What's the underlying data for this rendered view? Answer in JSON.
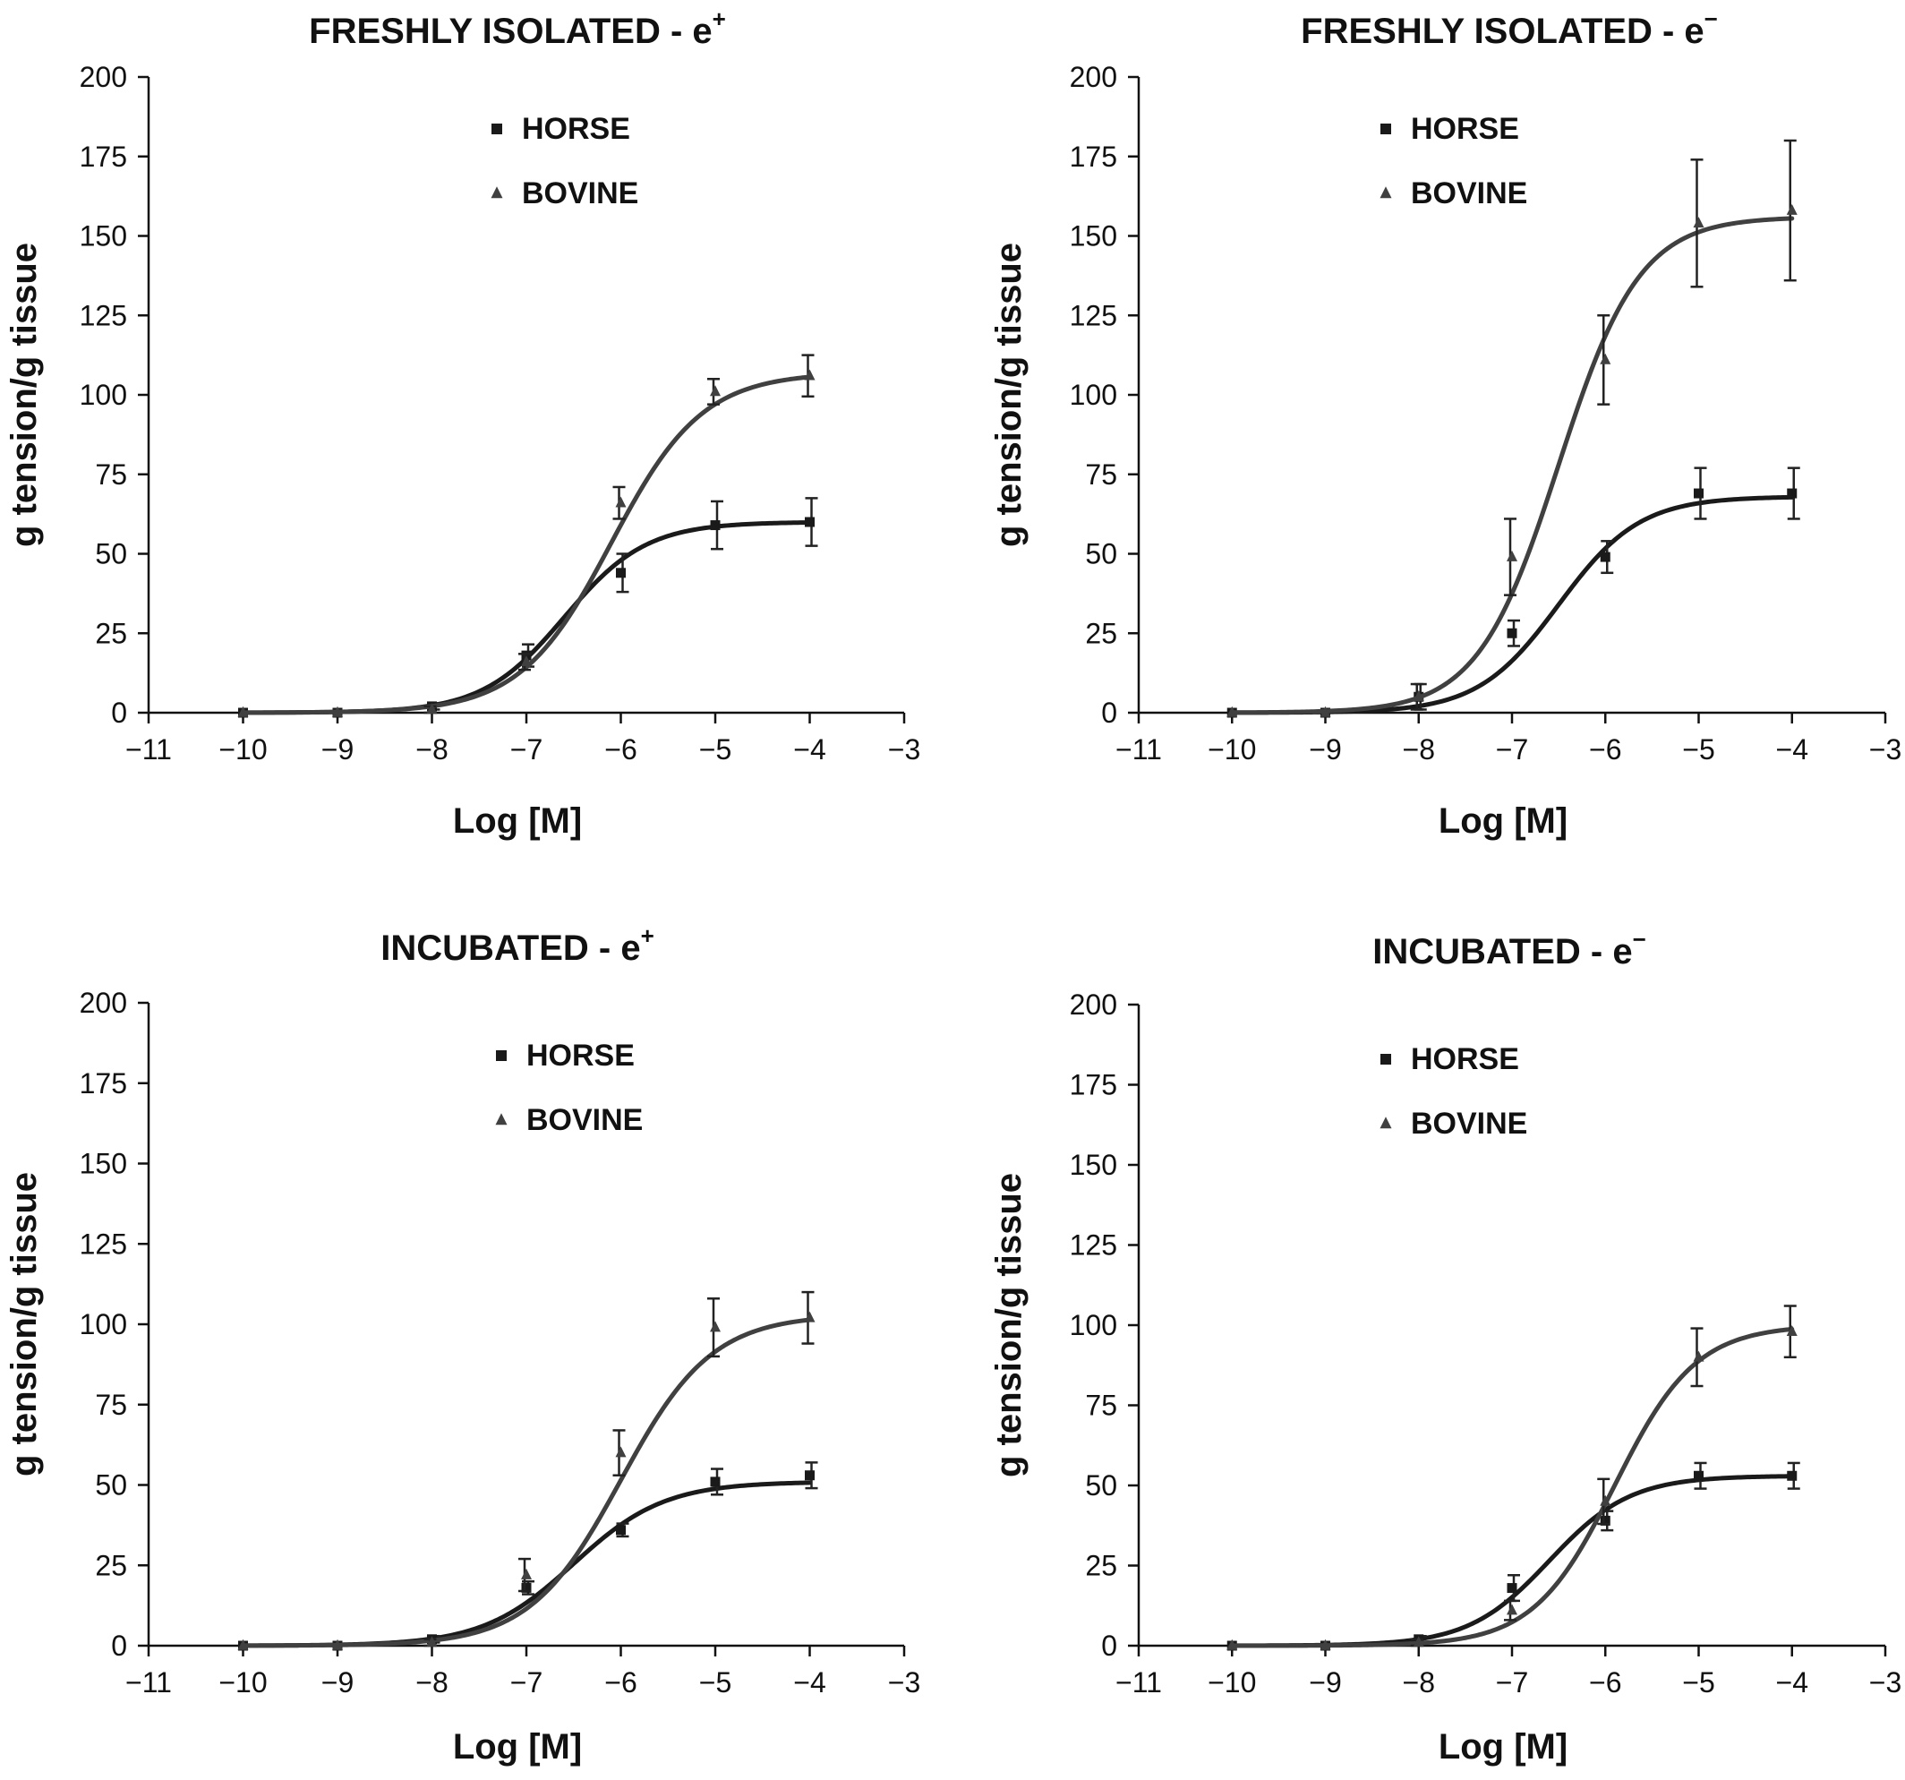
{
  "colors": {
    "horse": "#1a1a1a",
    "bovine": "#404040",
    "axis": "#111111",
    "background": "#ffffff"
  },
  "legend_markers": {
    "horse": "square",
    "bovine": "triangle"
  },
  "chart_data": [
    {
      "type": "scatter",
      "title": "FRESHLY ISOLATED - e",
      "title_superscript": "+",
      "xlabel": "Log [M]",
      "ylabel": "g tension/g tissue",
      "xlim": [
        -11,
        -3
      ],
      "ylim": [
        0,
        200
      ],
      "xticks": [
        -11,
        -10,
        -9,
        -8,
        -7,
        -6,
        -5,
        -4,
        -3
      ],
      "yticks": [
        0,
        25,
        50,
        75,
        100,
        125,
        150,
        175,
        200
      ],
      "xtick_labels": [
        "−11",
        "−10",
        "−9",
        "−8",
        "−7",
        "−6",
        "−5",
        "−4",
        "−3"
      ],
      "ytick_labels": [
        "0",
        "25",
        "50",
        "75",
        "100",
        "125",
        "150",
        "175",
        "200"
      ],
      "grid": false,
      "legend_position": "top-center",
      "x": [
        -10,
        -9,
        -8,
        -7,
        -6,
        -5,
        -4
      ],
      "series": [
        {
          "name": "HORSE",
          "marker": "square",
          "values": [
            0,
            0,
            2,
            18,
            44,
            59,
            60
          ],
          "errors": [
            0,
            0,
            1,
            3.5,
            6,
            7.5,
            7.5
          ],
          "fit_top": 60,
          "fit_ec50": -6.6,
          "fit_slope": 1.0
        },
        {
          "name": "BOVINE",
          "marker": "triangle",
          "values": [
            0,
            0,
            1,
            16,
            66,
            101,
            106
          ],
          "errors": [
            0,
            0,
            1,
            2.5,
            5,
            4,
            6.5
          ],
          "fit_top": 107,
          "fit_ec50": -6.1,
          "fit_slope": 0.9
        }
      ]
    },
    {
      "type": "scatter",
      "title": "FRESHLY ISOLATED - e",
      "title_superscript": "−",
      "xlabel": "Log [M]",
      "ylabel": "g tension/g tissue",
      "xlim": [
        -11,
        -3
      ],
      "ylim": [
        0,
        200
      ],
      "xticks": [
        -11,
        -10,
        -9,
        -8,
        -7,
        -6,
        -5,
        -4,
        -3
      ],
      "yticks": [
        0,
        25,
        50,
        75,
        100,
        125,
        150,
        175,
        200
      ],
      "xtick_labels": [
        "−11",
        "−10",
        "−9",
        "−8",
        "−7",
        "−6",
        "−5",
        "−4",
        "−3"
      ],
      "ytick_labels": [
        "0",
        "25",
        "50",
        "75",
        "100",
        "125",
        "150",
        "175",
        "200"
      ],
      "grid": false,
      "legend_position": "top-center",
      "x": [
        -10,
        -9,
        -8,
        -7,
        -6,
        -5,
        -4
      ],
      "series": [
        {
          "name": "HORSE",
          "marker": "square",
          "values": [
            0,
            0,
            5,
            25,
            49,
            69,
            69
          ],
          "errors": [
            0,
            0,
            4,
            4,
            5,
            8,
            8
          ],
          "fit_top": 68,
          "fit_ec50": -6.5,
          "fit_slope": 1.0
        },
        {
          "name": "BOVINE",
          "marker": "triangle",
          "values": [
            0,
            0,
            5,
            49,
            111,
            154,
            158
          ],
          "errors": [
            0,
            0,
            4,
            12,
            14,
            20,
            22
          ],
          "fit_top": 156,
          "fit_ec50": -6.5,
          "fit_slope": 1.0
        }
      ]
    },
    {
      "type": "scatter",
      "title": "INCUBATED - e",
      "title_superscript": "+",
      "xlabel": "Log [M]",
      "ylabel": "g tension/g tissue",
      "xlim": [
        -11,
        -3
      ],
      "ylim": [
        0,
        200
      ],
      "xticks": [
        -11,
        -10,
        -9,
        -8,
        -7,
        -6,
        -5,
        -4,
        -3
      ],
      "yticks": [
        0,
        25,
        50,
        75,
        100,
        125,
        150,
        175,
        200
      ],
      "xtick_labels": [
        "−11",
        "−10",
        "−9",
        "−8",
        "−7",
        "−6",
        "−5",
        "−4",
        "−3"
      ],
      "ytick_labels": [
        "0",
        "25",
        "50",
        "75",
        "100",
        "125",
        "150",
        "175",
        "200"
      ],
      "grid": false,
      "legend_position": "top-center",
      "x": [
        -10,
        -9,
        -8,
        -7,
        -6,
        -5,
        -4
      ],
      "series": [
        {
          "name": "HORSE",
          "marker": "square",
          "values": [
            0,
            0,
            2,
            18,
            36,
            51,
            53
          ],
          "errors": [
            0,
            0,
            1,
            2,
            2,
            4,
            4
          ],
          "fit_top": 51,
          "fit_ec50": -6.5,
          "fit_slope": 0.9
        },
        {
          "name": "BOVINE",
          "marker": "triangle",
          "values": [
            0,
            0,
            1,
            22,
            60,
            99,
            102
          ],
          "errors": [
            0,
            0,
            1,
            5,
            7,
            9,
            8
          ],
          "fit_top": 103,
          "fit_ec50": -6.0,
          "fit_slope": 0.9
        }
      ]
    },
    {
      "type": "scatter",
      "title": "INCUBATED - e",
      "title_superscript": "−",
      "xlabel": "Log [M]",
      "ylabel": "g tension/g tissue",
      "xlim": [
        -11,
        -3
      ],
      "ylim": [
        0,
        200
      ],
      "xticks": [
        -11,
        -10,
        -9,
        -8,
        -7,
        -6,
        -5,
        -4,
        -3
      ],
      "yticks": [
        0,
        25,
        50,
        75,
        100,
        125,
        150,
        175,
        200
      ],
      "xtick_labels": [
        "−11",
        "−10",
        "−9",
        "−8",
        "−7",
        "−6",
        "−5",
        "−4",
        "−3"
      ],
      "ytick_labels": [
        "0",
        "25",
        "50",
        "75",
        "100",
        "125",
        "150",
        "175",
        "200"
      ],
      "grid": false,
      "legend_position": "top-center",
      "x": [
        -10,
        -9,
        -8,
        -7,
        -6,
        -5,
        -4
      ],
      "series": [
        {
          "name": "HORSE",
          "marker": "square",
          "values": [
            0,
            0,
            2,
            18,
            39,
            53,
            53
          ],
          "errors": [
            0,
            0,
            1,
            4,
            3,
            4,
            4
          ],
          "fit_top": 53,
          "fit_ec50": -6.6,
          "fit_slope": 1.0
        },
        {
          "name": "BOVINE",
          "marker": "triangle",
          "values": [
            0,
            0,
            1,
            11,
            45,
            90,
            98
          ],
          "errors": [
            0,
            0,
            1,
            3,
            7,
            9,
            8
          ],
          "fit_top": 100,
          "fit_ec50": -5.9,
          "fit_slope": 1.0
        }
      ]
    }
  ]
}
